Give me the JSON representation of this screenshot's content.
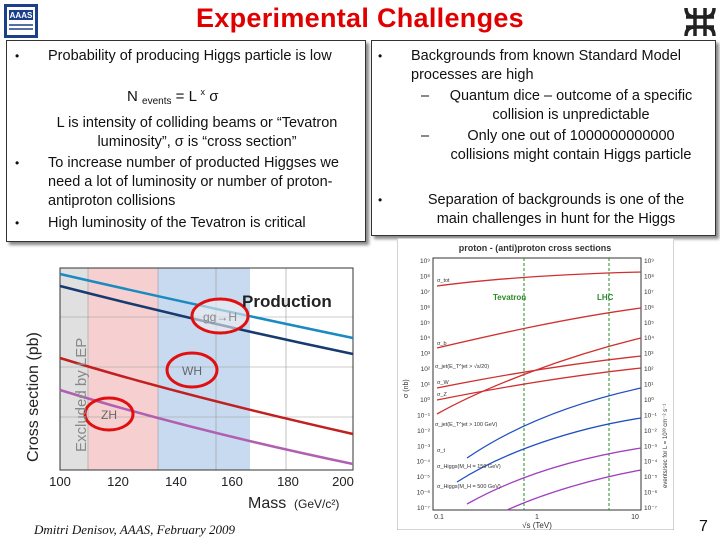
{
  "title": "Experimental Challenges",
  "left": {
    "bullet1": "Probability of producing Higgs particle is low",
    "equation": {
      "n": "N",
      "sub": "events",
      "eq": "= L",
      "sup": "x",
      "sigma": "σ"
    },
    "note": "L is intensity of colliding beams or “Tevatron luminosity”, σ is “cross section”",
    "bullet2": "To increase number of producted Higgses we need a lot of luminosity or number of proton-antiproton collisions",
    "bullet3": "High luminosity of the Tevatron is critical"
  },
  "right": {
    "bullet1": "Backgrounds from known Standard Model processes are high",
    "sub1": "Quantum dice – outcome of a specific collision is unpredictable",
    "sub2": "Only one out of 1000000000000 collisions  might  contain Higgs particle",
    "bullet2": "Separation of backgrounds is one of the main challenges in hunt for the Higgs"
  },
  "plot1": {
    "ylabel": "Cross section (pb)",
    "excluded": "Excluded by LEP",
    "xlabel": "Mass",
    "xunit": "(GeV/c²)",
    "production": "Production",
    "procs": [
      "gg→H",
      "WH",
      "ZH"
    ],
    "xticks": [
      "100",
      "120",
      "140",
      "160",
      "180",
      "200"
    ]
  },
  "plot2": {
    "title": "proton - (anti)proton cross sections",
    "tevatron": "Tevatron",
    "lhc": "LHC",
    "ylabel_left": "σ (nb)",
    "ylabel_right": "events/sec for L = 10³³ cm⁻² s⁻¹",
    "xlabel": "√s  (TeV)",
    "left_ticks": [
      "10⁹",
      "10⁸",
      "10⁷",
      "10⁶",
      "10⁵",
      "10⁴",
      "10³",
      "10²",
      "10¹",
      "10⁰",
      "10⁻¹",
      "10⁻²",
      "10⁻³",
      "10⁻⁴",
      "10⁻⁵",
      "10⁻⁶",
      "10⁻⁷"
    ],
    "right_ticks": [
      "10⁹",
      "10⁸",
      "10⁷",
      "10⁶",
      "10⁵",
      "10⁴",
      "10³",
      "10²",
      "10¹",
      "10⁰",
      "10⁻¹",
      "10⁻²",
      "10⁻³",
      "10⁻⁴",
      "10⁻⁵",
      "10⁻⁶",
      "10⁻⁷"
    ],
    "xticks": [
      "0.1",
      "1",
      "10"
    ],
    "curve_labels": [
      "σ_tot",
      "σ_b",
      "σ_jet(E_T^jet > √s/20)",
      "σ_W",
      "σ_Z",
      "σ_jet(E_T^jet > 100 GeV)",
      "σ_t",
      "σ_Higgs(M_H = 150 GeV)",
      "σ_Higgs(M_H = 500 GeV)"
    ]
  },
  "footer": "Dmitri Denisov, AAAS, February 2009",
  "page_number": "7"
}
